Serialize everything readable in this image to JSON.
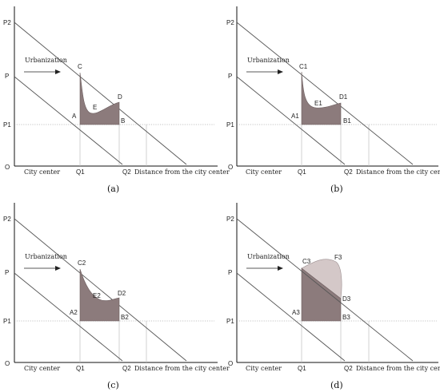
{
  "panels": [
    {
      "id": "a",
      "caption": "(a)",
      "labels": {
        "p2": "P2",
        "p": "P",
        "p1": "P1",
        "origin": "O",
        "city_center": "City center",
        "q1": "Q1",
        "q2": "Q2",
        "distance": "Distance from the city center",
        "arrow": "Urbanization",
        "c": "C",
        "d": "D",
        "e": "E",
        "a": "A",
        "b": "B"
      }
    },
    {
      "id": "b",
      "caption": "(b)",
      "labels": {
        "p2": "P2",
        "p": "P",
        "p1": "P1",
        "origin": "O",
        "city_center": "City center",
        "q1": "Q1",
        "q2": "Q2",
        "distance": "Distance from the city center",
        "arrow": "Urbanization",
        "c": "C1",
        "d": "D1",
        "e": "E1",
        "a": "A1",
        "b": "B1"
      }
    },
    {
      "id": "c",
      "caption": "(c)",
      "labels": {
        "p2": "P2",
        "p": "P",
        "p1": "P1",
        "origin": "O",
        "city_center": "City center",
        "q1": "Q1",
        "q2": "Q2",
        "distance": "Distance from the city center",
        "arrow": "Urbanization",
        "c": "C2",
        "d": "D2",
        "e": "E2",
        "a": "A2",
        "b": "B2"
      }
    },
    {
      "id": "d",
      "caption": "(d)",
      "labels": {
        "p2": "P2",
        "p": "P",
        "p1": "P1",
        "origin": "O",
        "city_center": "City center",
        "q1": "Q1",
        "q2": "Q2",
        "distance": "Distance from the city center",
        "arrow": "Urbanization",
        "c": "C3",
        "d": "D3",
        "f": "F3",
        "a": "A3",
        "b": "B3"
      }
    }
  ],
  "colors": {
    "shade": "#8c7b7c",
    "shade_light": "#d4c8c8",
    "axis": "#111111",
    "lines": "#555555"
  }
}
